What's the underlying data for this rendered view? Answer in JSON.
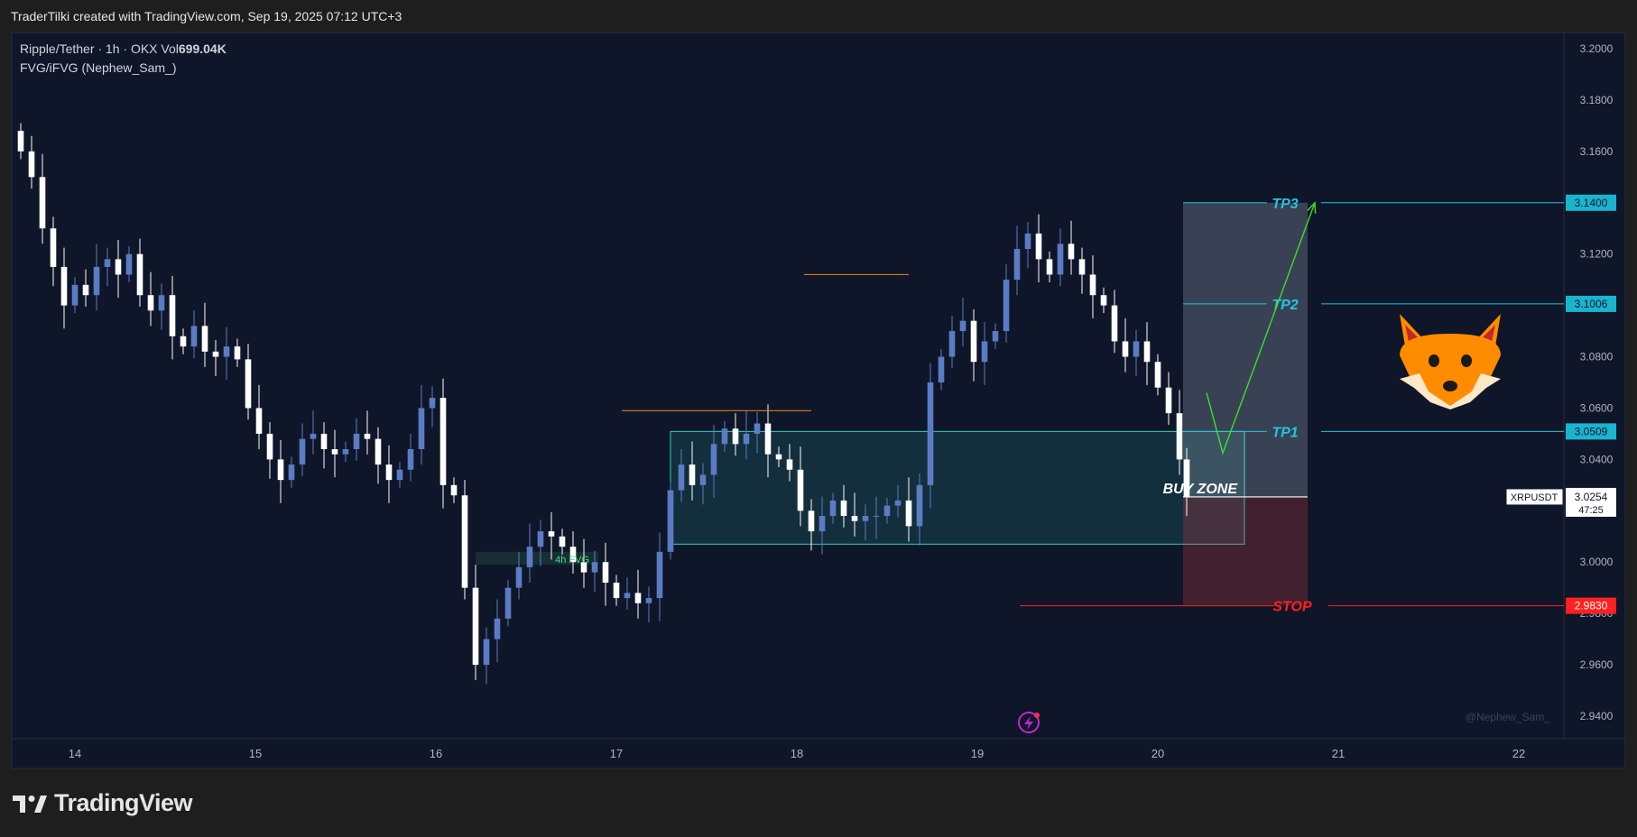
{
  "header": {
    "credit": "TraderTilki created with TradingView.com, Sep 19, 2025 07:12 UTC+3"
  },
  "legend": {
    "line1_prefix": "Ripple/Tether · 1h · OKX  Vol",
    "volume": "699.04K",
    "line2": "FVG/iFVG (Nephew_Sam_)"
  },
  "footer": {
    "brand": "TradingView",
    "brand_icon": "tradingview-logo-icon"
  },
  "watermark": "@Nephew_Sam_",
  "colors": {
    "background": "#0f1629",
    "frame": "#1e1e1e",
    "candle_up": "#5b7cc4",
    "candle_down": "#ffffff",
    "target": "#22c5e0",
    "stop": "#ff2020",
    "zone": "#2dd4bf",
    "arrow": "#3be02a",
    "orange_line": "#d77a1c",
    "fvg": "#4ade80",
    "fox": "#ff8c00"
  },
  "chart_data": {
    "type": "candlestick",
    "symbol": "Ripple/Tether",
    "ticker": "XRPUSDT",
    "timeframe": "1h",
    "exchange": "OKX",
    "x_tick_labels": [
      "14",
      "15",
      "16",
      "17",
      "18",
      "19",
      "20",
      "21",
      "22"
    ],
    "x_range": [
      13.67,
      22.26
    ],
    "y_ticks": [
      "3.2000",
      "3.1800",
      "3.1600",
      "3.1400",
      "3.1200",
      "3.1000",
      "3.0800",
      "3.0600",
      "3.0400",
      "3.0200",
      "3.0000",
      "2.9800",
      "2.9600",
      "2.9400"
    ],
    "ylim": [
      2.9327,
      3.203
    ],
    "current_price": "3.0254",
    "countdown": "47:25",
    "candles_close_path": [
      [
        13.7,
        3.16
      ],
      [
        13.76,
        3.15
      ],
      [
        13.82,
        3.13
      ],
      [
        13.88,
        3.115
      ],
      [
        13.94,
        3.1
      ],
      [
        14.0,
        3.108
      ],
      [
        14.06,
        3.104
      ],
      [
        14.12,
        3.115
      ],
      [
        14.18,
        3.118
      ],
      [
        14.24,
        3.112
      ],
      [
        14.3,
        3.12
      ],
      [
        14.36,
        3.104
      ],
      [
        14.42,
        3.098
      ],
      [
        14.48,
        3.104
      ],
      [
        14.54,
        3.088
      ],
      [
        14.6,
        3.084
      ],
      [
        14.66,
        3.092
      ],
      [
        14.72,
        3.082
      ],
      [
        14.78,
        3.08
      ],
      [
        14.84,
        3.084
      ],
      [
        14.9,
        3.079
      ],
      [
        14.96,
        3.06
      ],
      [
        15.02,
        3.05
      ],
      [
        15.08,
        3.04
      ],
      [
        15.14,
        3.032
      ],
      [
        15.2,
        3.038
      ],
      [
        15.26,
        3.048
      ],
      [
        15.32,
        3.05
      ],
      [
        15.38,
        3.044
      ],
      [
        15.44,
        3.042
      ],
      [
        15.5,
        3.044
      ],
      [
        15.56,
        3.05
      ],
      [
        15.62,
        3.048
      ],
      [
        15.68,
        3.038
      ],
      [
        15.74,
        3.032
      ],
      [
        15.8,
        3.036
      ],
      [
        15.86,
        3.044
      ],
      [
        15.92,
        3.06
      ],
      [
        15.98,
        3.064
      ],
      [
        16.04,
        3.03
      ],
      [
        16.1,
        3.026
      ],
      [
        16.16,
        2.99
      ],
      [
        16.22,
        2.96
      ],
      [
        16.28,
        2.97
      ],
      [
        16.34,
        2.978
      ],
      [
        16.4,
        2.99
      ],
      [
        16.46,
        2.998
      ],
      [
        16.52,
        3.006
      ],
      [
        16.58,
        3.012
      ],
      [
        16.64,
        3.01
      ],
      [
        16.7,
        3.006
      ],
      [
        16.76,
        3.0
      ],
      [
        16.82,
        2.996
      ],
      [
        16.88,
        3.0
      ],
      [
        16.94,
        2.992
      ],
      [
        17.0,
        2.986
      ],
      [
        17.06,
        2.988
      ],
      [
        17.12,
        2.984
      ],
      [
        17.18,
        2.986
      ],
      [
        17.24,
        3.004
      ],
      [
        17.3,
        3.028
      ],
      [
        17.36,
        3.038
      ],
      [
        17.42,
        3.03
      ],
      [
        17.48,
        3.034
      ],
      [
        17.54,
        3.046
      ],
      [
        17.6,
        3.052
      ],
      [
        17.66,
        3.046
      ],
      [
        17.72,
        3.05
      ],
      [
        17.78,
        3.054
      ],
      [
        17.84,
        3.042
      ],
      [
        17.9,
        3.04
      ],
      [
        17.96,
        3.036
      ],
      [
        18.02,
        3.02
      ],
      [
        18.08,
        3.012
      ],
      [
        18.14,
        3.018
      ],
      [
        18.2,
        3.024
      ],
      [
        18.26,
        3.018
      ],
      [
        18.32,
        3.016
      ],
      [
        18.38,
        3.018
      ],
      [
        18.44,
        3.018
      ],
      [
        18.5,
        3.022
      ],
      [
        18.56,
        3.024
      ],
      [
        18.62,
        3.014
      ],
      [
        18.68,
        3.03
      ],
      [
        18.74,
        3.07
      ],
      [
        18.8,
        3.08
      ],
      [
        18.86,
        3.09
      ],
      [
        18.92,
        3.094
      ],
      [
        18.98,
        3.078
      ],
      [
        19.04,
        3.086
      ],
      [
        19.1,
        3.09
      ],
      [
        19.16,
        3.11
      ],
      [
        19.22,
        3.122
      ],
      [
        19.28,
        3.128
      ],
      [
        19.34,
        3.118
      ],
      [
        19.4,
        3.112
      ],
      [
        19.46,
        3.124
      ],
      [
        19.52,
        3.118
      ],
      [
        19.58,
        3.112
      ],
      [
        19.64,
        3.104
      ],
      [
        19.7,
        3.1
      ],
      [
        19.76,
        3.086
      ],
      [
        19.82,
        3.08
      ],
      [
        19.88,
        3.086
      ],
      [
        19.94,
        3.078
      ],
      [
        20.0,
        3.068
      ],
      [
        20.06,
        3.058
      ],
      [
        20.12,
        3.04
      ],
      [
        20.16,
        3.0254
      ]
    ],
    "levels": [
      {
        "label": "TP3",
        "price": 3.14,
        "price_label": "3.1400"
      },
      {
        "label": "TP2",
        "price": 3.1006,
        "price_label": "3.1006"
      },
      {
        "label": "TP1",
        "price": 3.0509,
        "price_label": "3.0509"
      },
      {
        "label": "STOP",
        "price": 2.983,
        "price_label": "2.9830"
      }
    ],
    "buy_zone": {
      "label": "BUY ZONE",
      "from_x": 17.3,
      "to_x": 20.48,
      "y_top": 3.0509,
      "y_bottom": 3.007
    },
    "fvg_4h": {
      "label": "4h FVG",
      "from_x": 16.22,
      "to_x": 16.9,
      "y_top": 3.004,
      "y_bottom": 2.999
    },
    "orange_lines": [
      {
        "from_x": 17.03,
        "to_x": 18.08,
        "y": 3.059
      },
      {
        "from_x": 18.04,
        "to_x": 18.62,
        "y": 3.112
      }
    ],
    "projection": {
      "from_x": 20.16,
      "to_x": 20.83,
      "entry": 3.0254,
      "target": 3.14,
      "stop": 2.983
    },
    "arrow_path": [
      [
        20.27,
        3.066
      ],
      [
        20.36,
        3.0425
      ],
      [
        20.87,
        3.14
      ]
    ]
  }
}
